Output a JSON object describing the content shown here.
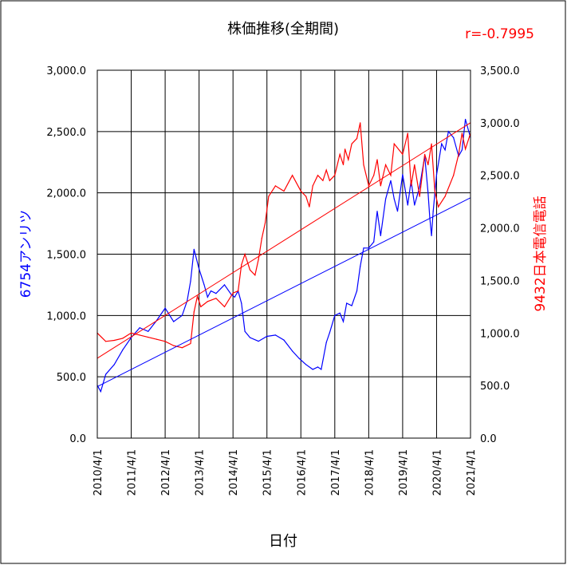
{
  "chart_data": {
    "type": "line",
    "title": "株価推移(全期間)",
    "correlation_label": "r=-0.7995",
    "xlabel": "日付",
    "x_ticks": [
      "2010/4/1",
      "2011/4/1",
      "2012/4/1",
      "2013/4/1",
      "2014/4/1",
      "2015/4/1",
      "2016/4/1",
      "2017/4/1",
      "2018/4/1",
      "2019/4/1",
      "2020/4/1",
      "2021/4/1"
    ],
    "x_range": [
      "2010/4/1",
      "2021/4/1"
    ],
    "y_left": {
      "label": "6754アンリツ",
      "range": [
        0,
        3000
      ],
      "ticks": [
        "0.0",
        "500.0",
        "1,000.0",
        "1,500.0",
        "2,000.0",
        "2,500.0",
        "3,000.0"
      ]
    },
    "y_right": {
      "label": "9432日本電信電話",
      "range": [
        0,
        3500
      ],
      "ticks": [
        "0.0",
        "500.0",
        "1,000.0",
        "1,500.0",
        "2,000.0",
        "2,500.0",
        "3,000.0",
        "3,500.0"
      ]
    },
    "grid": true,
    "series": [
      {
        "name": "6754アンリツ",
        "axis": "left",
        "color": "#0000ff",
        "x": [
          2010.25,
          2010.35,
          2010.5,
          2010.75,
          2011.0,
          2011.25,
          2011.5,
          2011.75,
          2012.0,
          2012.25,
          2012.5,
          2012.75,
          2012.9,
          2013.0,
          2013.1,
          2013.25,
          2013.4,
          2013.5,
          2013.6,
          2013.75,
          2014.0,
          2014.2,
          2014.3,
          2014.4,
          2014.5,
          2014.6,
          2014.75,
          2015.0,
          2015.25,
          2015.5,
          2015.75,
          2016.0,
          2016.2,
          2016.4,
          2016.6,
          2016.75,
          2016.85,
          2017.0,
          2017.1,
          2017.25,
          2017.4,
          2017.5,
          2017.6,
          2017.75,
          2017.9,
          2018.0,
          2018.1,
          2018.25,
          2018.4,
          2018.5,
          2018.6,
          2018.75,
          2018.9,
          2019.0,
          2019.1,
          2019.25,
          2019.4,
          2019.5,
          2019.6,
          2019.75,
          2019.9,
          2020.0,
          2020.05,
          2020.1,
          2020.15,
          2020.25,
          2020.4,
          2020.5,
          2020.6,
          2020.75,
          2020.9,
          2021.0,
          2021.1,
          2021.25
        ],
        "y": [
          430,
          380,
          520,
          600,
          720,
          820,
          900,
          870,
          960,
          1060,
          950,
          1000,
          1120,
          1280,
          1540,
          1380,
          1250,
          1150,
          1200,
          1180,
          1250,
          1170,
          1150,
          1200,
          1100,
          870,
          820,
          790,
          830,
          840,
          800,
          710,
          650,
          600,
          560,
          580,
          560,
          780,
          860,
          1000,
          1020,
          950,
          1100,
          1080,
          1200,
          1400,
          1550,
          1550,
          1600,
          1850,
          1650,
          1950,
          2100,
          1950,
          1850,
          2150,
          1900,
          2100,
          1900,
          2050,
          2300,
          2000,
          1800,
          1650,
          1850,
          2150,
          2400,
          2350,
          2500,
          2450,
          2300,
          2350,
          2600,
          2450
        ]
      },
      {
        "name": "9432日本電信電話",
        "axis": "right",
        "color": "#ff0000",
        "x": [
          2010.25,
          2010.5,
          2010.75,
          2011.0,
          2011.25,
          2011.5,
          2011.75,
          2012.0,
          2012.25,
          2012.5,
          2012.75,
          2013.0,
          2013.1,
          2013.2,
          2013.3,
          2013.5,
          2013.75,
          2014.0,
          2014.25,
          2014.4,
          2014.5,
          2014.6,
          2014.75,
          2014.9,
          2015.0,
          2015.1,
          2015.2,
          2015.3,
          2015.5,
          2015.75,
          2016.0,
          2016.25,
          2016.4,
          2016.5,
          2016.6,
          2016.75,
          2016.9,
          2017.0,
          2017.1,
          2017.25,
          2017.4,
          2017.5,
          2017.55,
          2017.65,
          2017.75,
          2017.9,
          2018.0,
          2018.1,
          2018.25,
          2018.4,
          2018.5,
          2018.6,
          2018.75,
          2018.9,
          2019.0,
          2019.25,
          2019.4,
          2019.5,
          2019.6,
          2019.75,
          2019.9,
          2020.0,
          2020.1,
          2020.2,
          2020.3,
          2020.5,
          2020.75,
          2020.9,
          2021.0,
          2021.1,
          2021.25
        ],
        "y": [
          1000,
          920,
          930,
          950,
          1000,
          980,
          960,
          940,
          920,
          880,
          860,
          900,
          1200,
          1350,
          1250,
          1300,
          1330,
          1250,
          1380,
          1400,
          1650,
          1750,
          1600,
          1550,
          1700,
          1900,
          2050,
          2300,
          2400,
          2350,
          2500,
          2350,
          2300,
          2200,
          2400,
          2500,
          2450,
          2550,
          2450,
          2500,
          2700,
          2600,
          2750,
          2650,
          2800,
          2850,
          3000,
          2600,
          2400,
          2500,
          2650,
          2400,
          2600,
          2500,
          2800,
          2700,
          2900,
          2400,
          2600,
          2300,
          2700,
          2600,
          2800,
          2350,
          2200,
          2300,
          2500,
          2700,
          2900,
          2750,
          2900
        ]
      }
    ],
    "trendlines": [
      {
        "axis": "left",
        "color": "#0000ff",
        "x": [
          2010.25,
          2021.25
        ],
        "y": [
          420,
          1960
        ]
      },
      {
        "axis": "right",
        "color": "#ff0000",
        "x": [
          2010.25,
          2021.25
        ],
        "y": [
          760,
          3000
        ]
      }
    ]
  }
}
